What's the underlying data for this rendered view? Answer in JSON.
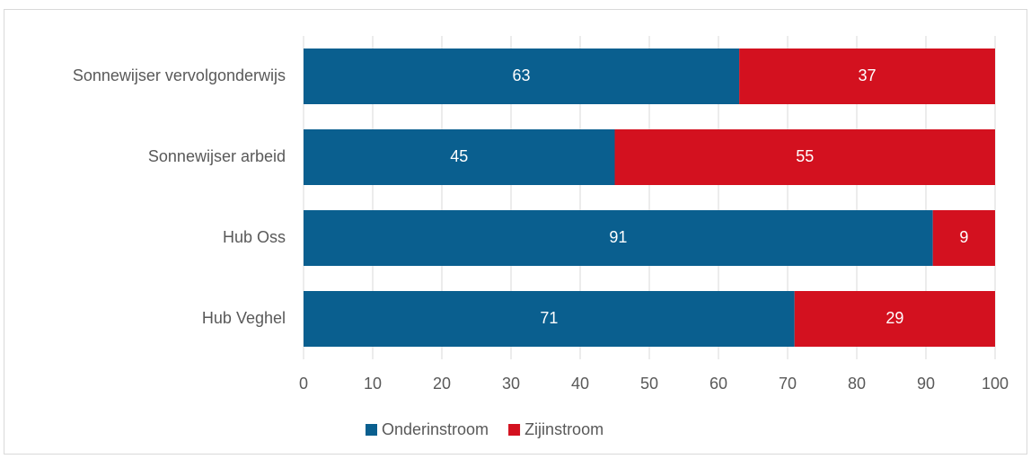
{
  "chart_data": {
    "type": "stacked_bar_horizontal",
    "categories": [
      "Sonnewijser vervolgonderwijs",
      "Sonnewijser arbeid",
      "Hub Oss",
      "Hub Veghel"
    ],
    "series": [
      {
        "name": "Onderinstroom",
        "color": "#0a5f8f",
        "values": [
          63,
          45,
          91,
          71
        ]
      },
      {
        "name": "Zijinstroom",
        "color": "#d3111f",
        "values": [
          37,
          55,
          9,
          29
        ]
      }
    ],
    "xlim": [
      0,
      100
    ],
    "xticks": [
      0,
      10,
      20,
      30,
      40,
      50,
      60,
      70,
      80,
      90,
      100
    ],
    "grid": true,
    "legend": "bottom"
  }
}
